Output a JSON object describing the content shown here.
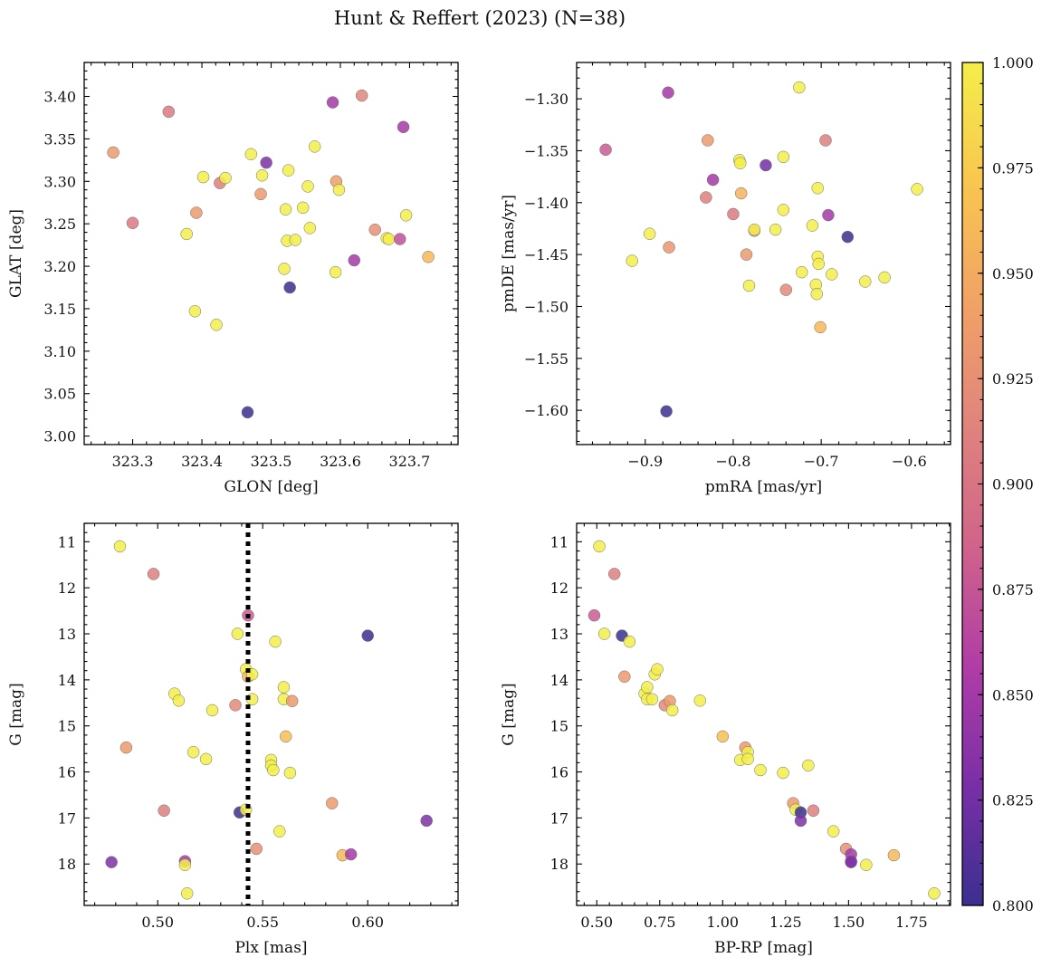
{
  "figure": {
    "title": "Hunt & Reffert (2023) (N=38)"
  },
  "colorbar": {
    "colormap": "plasma",
    "range": [
      0.8,
      1.0
    ],
    "ticks": [
      0.8,
      0.825,
      0.85,
      0.875,
      0.9,
      0.925,
      0.95,
      0.975,
      1.0
    ],
    "tick_labels": [
      "0.800",
      "0.825",
      "0.850",
      "0.875",
      "0.900",
      "0.925",
      "0.950",
      "0.975",
      "1.000"
    ],
    "stops": [
      "#3b2f8f",
      "#7a2fa6",
      "#b13da6",
      "#d0648a",
      "#e0847d",
      "#f1a265",
      "#f9c64f",
      "#f3ee4a"
    ]
  },
  "chart_data": [
    {
      "type": "scatter",
      "name": "glon-glat",
      "xlabel": "GLON [deg]",
      "ylabel": "GLAT [deg]",
      "xlim": [
        323.23,
        323.77
      ],
      "ylim": [
        2.99,
        3.44
      ],
      "xticks": [
        323.3,
        323.4,
        323.5,
        323.6,
        323.7
      ],
      "xtick_labels": [
        "323.3",
        "323.4",
        "323.5",
        "323.6",
        "323.7"
      ],
      "yticks": [
        3.0,
        3.05,
        3.1,
        3.15,
        3.2,
        3.25,
        3.3,
        3.35,
        3.4
      ],
      "ytick_labels": [
        "3.00",
        "3.05",
        "3.10",
        "3.15",
        "3.20",
        "3.25",
        "3.30",
        "3.35",
        "3.40"
      ],
      "points": [
        {
          "x": 323.272,
          "y": 3.334,
          "c": 0.935
        },
        {
          "x": 323.3,
          "y": 3.251,
          "c": 0.905
        },
        {
          "x": 323.352,
          "y": 3.382,
          "c": 0.905
        },
        {
          "x": 323.378,
          "y": 3.238,
          "c": 1.0
        },
        {
          "x": 323.39,
          "y": 3.147,
          "c": 1.0
        },
        {
          "x": 323.392,
          "y": 3.263,
          "c": 0.935
        },
        {
          "x": 323.402,
          "y": 3.305,
          "c": 1.0
        },
        {
          "x": 323.421,
          "y": 3.131,
          "c": 1.0
        },
        {
          "x": 323.426,
          "y": 3.298,
          "c": 0.91
        },
        {
          "x": 323.434,
          "y": 3.304,
          "c": 1.0
        },
        {
          "x": 323.466,
          "y": 3.028,
          "c": 0.8
        },
        {
          "x": 323.471,
          "y": 3.332,
          "c": 1.0
        },
        {
          "x": 323.485,
          "y": 3.285,
          "c": 0.935
        },
        {
          "x": 323.487,
          "y": 3.307,
          "c": 1.0
        },
        {
          "x": 323.493,
          "y": 3.322,
          "c": 0.83
        },
        {
          "x": 323.519,
          "y": 3.197,
          "c": 1.0
        },
        {
          "x": 323.521,
          "y": 3.267,
          "c": 1.0
        },
        {
          "x": 323.523,
          "y": 3.23,
          "c": 1.0
        },
        {
          "x": 323.525,
          "y": 3.313,
          "c": 1.0
        },
        {
          "x": 323.527,
          "y": 3.175,
          "c": 0.8
        },
        {
          "x": 323.535,
          "y": 3.231,
          "c": 1.0
        },
        {
          "x": 323.546,
          "y": 3.269,
          "c": 1.0
        },
        {
          "x": 323.553,
          "y": 3.294,
          "c": 1.0
        },
        {
          "x": 323.556,
          "y": 3.245,
          "c": 1.0
        },
        {
          "x": 323.563,
          "y": 3.341,
          "c": 1.0
        },
        {
          "x": 323.589,
          "y": 3.393,
          "c": 0.85
        },
        {
          "x": 323.593,
          "y": 3.193,
          "c": 1.0
        },
        {
          "x": 323.594,
          "y": 3.3,
          "c": 0.94
        },
        {
          "x": 323.598,
          "y": 3.29,
          "c": 1.0
        },
        {
          "x": 323.62,
          "y": 3.207,
          "c": 0.85
        },
        {
          "x": 323.631,
          "y": 3.401,
          "c": 0.915
        },
        {
          "x": 323.65,
          "y": 3.243,
          "c": 0.925
        },
        {
          "x": 323.667,
          "y": 3.233,
          "c": 1.0
        },
        {
          "x": 323.67,
          "y": 3.232,
          "c": 1.0
        },
        {
          "x": 323.686,
          "y": 3.232,
          "c": 0.87
        },
        {
          "x": 323.691,
          "y": 3.364,
          "c": 0.85
        },
        {
          "x": 323.695,
          "y": 3.26,
          "c": 1.0
        },
        {
          "x": 323.727,
          "y": 3.211,
          "c": 0.96
        }
      ]
    },
    {
      "type": "scatter",
      "name": "pmra-pmde",
      "xlabel": "pmRA [mas/yr]",
      "ylabel": "pmDE [mas/yr]",
      "xlim": [
        -0.978,
        -0.553
      ],
      "ylim": [
        -1.633,
        -1.265
      ],
      "xticks": [
        -0.9,
        -0.8,
        -0.7,
        -0.6
      ],
      "xtick_labels": [
        "−0.9",
        "−0.8",
        "−0.7",
        "−0.6"
      ],
      "yticks": [
        -1.6,
        -1.55,
        -1.5,
        -1.45,
        -1.4,
        -1.35,
        -1.3
      ],
      "ytick_labels": [
        "−1.60",
        "−1.55",
        "−1.50",
        "−1.45",
        "−1.40",
        "−1.35",
        "−1.30"
      ],
      "points": [
        {
          "x": -0.945,
          "y": -1.349,
          "c": 0.88
        },
        {
          "x": -0.915,
          "y": -1.456,
          "c": 1.0
        },
        {
          "x": -0.895,
          "y": -1.43,
          "c": 1.0
        },
        {
          "x": -0.876,
          "y": -1.601,
          "c": 0.8
        },
        {
          "x": -0.874,
          "y": -1.294,
          "c": 0.85
        },
        {
          "x": -0.873,
          "y": -1.443,
          "c": 0.93
        },
        {
          "x": -0.829,
          "y": -1.34,
          "c": 0.935
        },
        {
          "x": -0.831,
          "y": -1.395,
          "c": 0.91
        },
        {
          "x": -0.823,
          "y": -1.378,
          "c": 0.85
        },
        {
          "x": -0.8,
          "y": -1.411,
          "c": 0.905
        },
        {
          "x": -0.793,
          "y": -1.359,
          "c": 1.0
        },
        {
          "x": -0.792,
          "y": -1.362,
          "c": 1.0
        },
        {
          "x": -0.791,
          "y": -1.391,
          "c": 0.955
        },
        {
          "x": -0.785,
          "y": -1.45,
          "c": 0.935
        },
        {
          "x": -0.782,
          "y": -1.48,
          "c": 1.0
        },
        {
          "x": -0.776,
          "y": -1.427,
          "c": 0.92
        },
        {
          "x": -0.776,
          "y": -1.426,
          "c": 1.0
        },
        {
          "x": -0.763,
          "y": -1.364,
          "c": 0.825
        },
        {
          "x": -0.752,
          "y": -1.426,
          "c": 1.0
        },
        {
          "x": -0.743,
          "y": -1.356,
          "c": 1.0
        },
        {
          "x": -0.743,
          "y": -1.407,
          "c": 1.0
        },
        {
          "x": -0.74,
          "y": -1.484,
          "c": 0.92
        },
        {
          "x": -0.725,
          "y": -1.289,
          "c": 1.0
        },
        {
          "x": -0.722,
          "y": -1.467,
          "c": 1.0
        },
        {
          "x": -0.71,
          "y": -1.422,
          "c": 1.0
        },
        {
          "x": -0.706,
          "y": -1.479,
          "c": 1.0
        },
        {
          "x": -0.705,
          "y": -1.488,
          "c": 1.0
        },
        {
          "x": -0.704,
          "y": -1.386,
          "c": 1.0
        },
        {
          "x": -0.704,
          "y": -1.452,
          "c": 1.0
        },
        {
          "x": -0.703,
          "y": -1.459,
          "c": 1.0
        },
        {
          "x": -0.701,
          "y": -1.52,
          "c": 0.96
        },
        {
          "x": -0.695,
          "y": -1.34,
          "c": 0.91
        },
        {
          "x": -0.692,
          "y": -1.412,
          "c": 0.85
        },
        {
          "x": -0.688,
          "y": -1.469,
          "c": 1.0
        },
        {
          "x": -0.67,
          "y": -1.433,
          "c": 0.8
        },
        {
          "x": -0.65,
          "y": -1.476,
          "c": 1.0
        },
        {
          "x": -0.628,
          "y": -1.472,
          "c": 1.0
        },
        {
          "x": -0.591,
          "y": -1.387,
          "c": 1.0
        }
      ]
    },
    {
      "type": "scatter",
      "name": "plx-g",
      "xlabel": "Plx [mas]",
      "ylabel": "G [mag]",
      "xlim": [
        0.465,
        0.643
      ],
      "ylim": [
        18.9,
        10.6
      ],
      "y_inverted": true,
      "xticks": [
        0.5,
        0.55,
        0.6
      ],
      "xtick_labels": [
        "0.50",
        "0.55",
        "0.60"
      ],
      "yticks": [
        11,
        12,
        13,
        14,
        15,
        16,
        17,
        18
      ],
      "ytick_labels": [
        "11",
        "12",
        "13",
        "14",
        "15",
        "16",
        "17",
        "18"
      ],
      "vline": {
        "x": 0.543,
        "style": "dotted"
      },
      "points": [
        {
          "x": 0.478,
          "y": 17.96,
          "c": 0.83
        },
        {
          "x": 0.482,
          "y": 11.1,
          "c": 1.0
        },
        {
          "x": 0.485,
          "y": 15.47,
          "c": 0.935
        },
        {
          "x": 0.498,
          "y": 11.7,
          "c": 0.91
        },
        {
          "x": 0.503,
          "y": 16.84,
          "c": 0.91
        },
        {
          "x": 0.508,
          "y": 14.3,
          "c": 1.0
        },
        {
          "x": 0.51,
          "y": 14.45,
          "c": 1.0
        },
        {
          "x": 0.513,
          "y": 17.94,
          "c": 0.85
        },
        {
          "x": 0.513,
          "y": 18.02,
          "c": 1.0
        },
        {
          "x": 0.514,
          "y": 18.64,
          "c": 1.0
        },
        {
          "x": 0.517,
          "y": 15.57,
          "c": 1.0
        },
        {
          "x": 0.523,
          "y": 15.72,
          "c": 1.0
        },
        {
          "x": 0.526,
          "y": 14.66,
          "c": 1.0
        },
        {
          "x": 0.537,
          "y": 14.55,
          "c": 0.92
        },
        {
          "x": 0.538,
          "y": 13.0,
          "c": 1.0
        },
        {
          "x": 0.539,
          "y": 16.88,
          "c": 0.8
        },
        {
          "x": 0.542,
          "y": 16.82,
          "c": 1.0
        },
        {
          "x": 0.542,
          "y": 13.77,
          "c": 1.0
        },
        {
          "x": 0.543,
          "y": 12.6,
          "c": 0.88
        },
        {
          "x": 0.543,
          "y": 13.93,
          "c": 0.96
        },
        {
          "x": 0.545,
          "y": 13.88,
          "c": 1.0
        },
        {
          "x": 0.545,
          "y": 14.42,
          "c": 1.0
        },
        {
          "x": 0.547,
          "y": 17.67,
          "c": 0.925
        },
        {
          "x": 0.554,
          "y": 15.74,
          "c": 1.0
        },
        {
          "x": 0.554,
          "y": 15.86,
          "c": 1.0
        },
        {
          "x": 0.555,
          "y": 15.96,
          "c": 1.0
        },
        {
          "x": 0.556,
          "y": 13.17,
          "c": 1.0
        },
        {
          "x": 0.558,
          "y": 17.29,
          "c": 1.0
        },
        {
          "x": 0.56,
          "y": 14.16,
          "c": 1.0
        },
        {
          "x": 0.56,
          "y": 14.42,
          "c": 1.0
        },
        {
          "x": 0.561,
          "y": 15.23,
          "c": 0.965
        },
        {
          "x": 0.563,
          "y": 16.02,
          "c": 1.0
        },
        {
          "x": 0.564,
          "y": 14.46,
          "c": 0.935
        },
        {
          "x": 0.583,
          "y": 16.68,
          "c": 0.935
        },
        {
          "x": 0.588,
          "y": 17.81,
          "c": 0.96
        },
        {
          "x": 0.592,
          "y": 17.79,
          "c": 0.85
        },
        {
          "x": 0.6,
          "y": 13.04,
          "c": 0.8
        },
        {
          "x": 0.628,
          "y": 17.06,
          "c": 0.83
        }
      ]
    },
    {
      "type": "scatter",
      "name": "bprp-g",
      "xlabel": "BP-RP [mag]",
      "ylabel": "G [mag]",
      "xlim": [
        0.42,
        1.905
      ],
      "ylim": [
        18.9,
        10.6
      ],
      "y_inverted": true,
      "xticks": [
        0.5,
        0.75,
        1.0,
        1.25,
        1.5,
        1.75
      ],
      "xtick_labels": [
        "0.50",
        "0.75",
        "1.00",
        "1.25",
        "1.50",
        "1.75"
      ],
      "yticks": [
        11,
        12,
        13,
        14,
        15,
        16,
        17,
        18
      ],
      "ytick_labels": [
        "11",
        "12",
        "13",
        "14",
        "15",
        "16",
        "17",
        "18"
      ],
      "points": [
        {
          "x": 0.49,
          "y": 12.6,
          "c": 0.88
        },
        {
          "x": 0.51,
          "y": 11.1,
          "c": 1.0
        },
        {
          "x": 0.53,
          "y": 13.0,
          "c": 1.0
        },
        {
          "x": 0.57,
          "y": 11.7,
          "c": 0.91
        },
        {
          "x": 0.6,
          "y": 13.04,
          "c": 0.8
        },
        {
          "x": 0.61,
          "y": 13.93,
          "c": 0.935
        },
        {
          "x": 0.63,
          "y": 13.17,
          "c": 1.0
        },
        {
          "x": 0.69,
          "y": 14.3,
          "c": 1.0
        },
        {
          "x": 0.7,
          "y": 14.16,
          "c": 1.0
        },
        {
          "x": 0.7,
          "y": 14.42,
          "c": 1.0
        },
        {
          "x": 0.72,
          "y": 14.42,
          "c": 1.0
        },
        {
          "x": 0.73,
          "y": 13.88,
          "c": 1.0
        },
        {
          "x": 0.74,
          "y": 13.77,
          "c": 1.0
        },
        {
          "x": 0.77,
          "y": 14.55,
          "c": 0.92
        },
        {
          "x": 0.79,
          "y": 14.46,
          "c": 0.935
        },
        {
          "x": 0.8,
          "y": 14.66,
          "c": 1.0
        },
        {
          "x": 0.91,
          "y": 14.45,
          "c": 1.0
        },
        {
          "x": 1.0,
          "y": 15.23,
          "c": 0.965
        },
        {
          "x": 1.07,
          "y": 15.74,
          "c": 1.0
        },
        {
          "x": 1.09,
          "y": 15.47,
          "c": 0.935
        },
        {
          "x": 1.1,
          "y": 15.57,
          "c": 1.0
        },
        {
          "x": 1.1,
          "y": 15.72,
          "c": 1.0
        },
        {
          "x": 1.15,
          "y": 15.96,
          "c": 1.0
        },
        {
          "x": 1.24,
          "y": 16.02,
          "c": 1.0
        },
        {
          "x": 1.28,
          "y": 16.68,
          "c": 0.935
        },
        {
          "x": 1.29,
          "y": 16.82,
          "c": 1.0
        },
        {
          "x": 1.31,
          "y": 16.88,
          "c": 0.8
        },
        {
          "x": 1.31,
          "y": 17.06,
          "c": 0.83
        },
        {
          "x": 1.34,
          "y": 15.86,
          "c": 1.0
        },
        {
          "x": 1.36,
          "y": 16.84,
          "c": 0.91
        },
        {
          "x": 1.44,
          "y": 17.29,
          "c": 1.0
        },
        {
          "x": 1.49,
          "y": 17.67,
          "c": 0.925
        },
        {
          "x": 1.51,
          "y": 17.79,
          "c": 0.85
        },
        {
          "x": 1.51,
          "y": 17.94,
          "c": 0.85
        },
        {
          "x": 1.51,
          "y": 17.96,
          "c": 0.83
        },
        {
          "x": 1.57,
          "y": 18.02,
          "c": 1.0
        },
        {
          "x": 1.68,
          "y": 17.81,
          "c": 0.96
        },
        {
          "x": 1.84,
          "y": 18.64,
          "c": 1.0
        }
      ]
    }
  ]
}
